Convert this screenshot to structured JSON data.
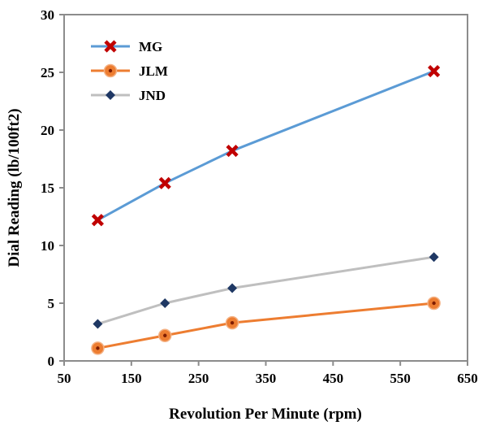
{
  "chart_data": {
    "type": "line",
    "xlabel": "Revolution Per Minute (rpm)",
    "ylabel": "Dial Reading (lb/100ft2)",
    "xlim": [
      50,
      650
    ],
    "ylim": [
      0,
      30
    ],
    "xticks": [
      50,
      150,
      250,
      350,
      450,
      550,
      650
    ],
    "yticks": [
      0,
      5,
      10,
      15,
      20,
      25,
      30
    ],
    "grid": false,
    "legend_position": "top-left",
    "series": [
      {
        "name": "MG",
        "color": "#5B9BD5",
        "marker": "x-cross",
        "marker_color": "#C00000",
        "x": [
          100,
          200,
          300,
          600
        ],
        "y": [
          12.2,
          15.4,
          18.2,
          25.1
        ]
      },
      {
        "name": "JLM",
        "color": "#ED7D31",
        "marker": "circle-dot",
        "marker_color": "#ED7D31",
        "x": [
          100,
          200,
          300,
          600
        ],
        "y": [
          1.1,
          2.2,
          3.3,
          5.0
        ]
      },
      {
        "name": "JND",
        "color": "#BFBFBF",
        "marker": "diamond",
        "marker_color": "#1F3864",
        "x": [
          100,
          200,
          300,
          600
        ],
        "y": [
          3.2,
          5.0,
          6.3,
          9.0
        ]
      }
    ]
  }
}
